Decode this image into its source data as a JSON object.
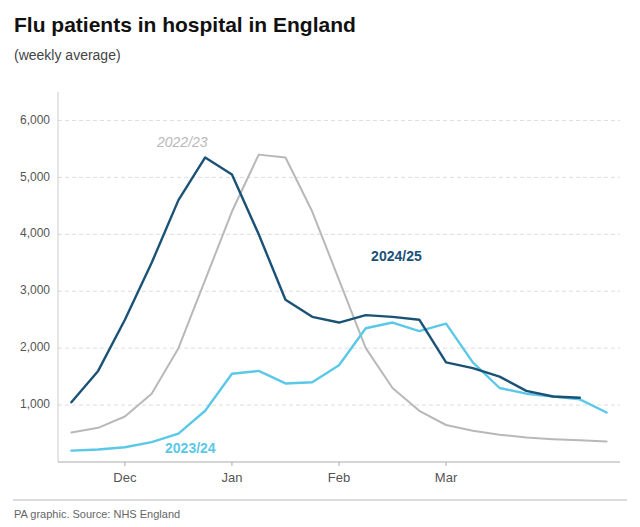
{
  "chart_data": {
    "type": "line",
    "title": "Flu patients in hospital in England",
    "subtitle": "(weekly average)",
    "source": "PA graphic. Source: NHS England",
    "xlim": [
      -0.5,
      20.5
    ],
    "xticks": [
      {
        "value": 2,
        "label": "Dec"
      },
      {
        "value": 6,
        "label": "Jan"
      },
      {
        "value": 10,
        "label": "Feb"
      },
      {
        "value": 14,
        "label": "Mar"
      }
    ],
    "ylim": [
      0,
      6500
    ],
    "yticks": [
      {
        "value": 1000,
        "label": "1,000"
      },
      {
        "value": 2000,
        "label": "2,000"
      },
      {
        "value": 3000,
        "label": "3,000"
      },
      {
        "value": 4000,
        "label": "4,000"
      },
      {
        "value": 5000,
        "label": "5,000"
      },
      {
        "value": 6000,
        "label": "6,000"
      }
    ],
    "grid": true,
    "series": [
      {
        "name": "2022/23",
        "color": "#b8b8b8",
        "x": [
          0,
          1,
          2,
          3,
          4,
          5,
          6,
          7,
          8,
          9,
          10,
          11,
          12,
          13,
          14,
          15,
          16,
          17,
          18,
          19,
          20
        ],
        "values": [
          520,
          600,
          800,
          1200,
          2000,
          3200,
          4400,
          5400,
          5350,
          4400,
          3200,
          2000,
          1300,
          900,
          650,
          550,
          480,
          430,
          400,
          380,
          360
        ]
      },
      {
        "name": "2023/24",
        "color": "#5bc8e8",
        "x": [
          0,
          1,
          2,
          3,
          4,
          5,
          6,
          7,
          8,
          9,
          10,
          11,
          12,
          13,
          14,
          15,
          16,
          17,
          18,
          19,
          20
        ],
        "values": [
          200,
          220,
          260,
          350,
          500,
          900,
          1550,
          1600,
          1380,
          1400,
          1700,
          2350,
          2450,
          2300,
          2430,
          1750,
          1300,
          1200,
          1150,
          1100,
          870
        ]
      },
      {
        "name": "2024/25",
        "color": "#1a5276",
        "x": [
          0,
          1,
          2,
          3,
          4,
          5,
          6,
          7,
          8,
          9,
          10,
          11,
          12,
          13,
          14,
          15,
          16,
          17,
          18,
          19
        ],
        "values": [
          1050,
          1600,
          2500,
          3500,
          4600,
          5350,
          5050,
          4000,
          2850,
          2550,
          2450,
          2580,
          2550,
          2500,
          1750,
          1650,
          1500,
          1250,
          1150,
          1130
        ]
      }
    ],
    "annotations": [
      {
        "text": "2022/23",
        "x": 3.2,
        "y": 5500,
        "color": "#b8b8b8"
      },
      {
        "text": "2023/24",
        "x": 3.5,
        "y": 380,
        "color": "#5bc8e8"
      },
      {
        "text": "2024/25",
        "x": 11.2,
        "y": 3500,
        "color": "#1a5276"
      }
    ]
  }
}
